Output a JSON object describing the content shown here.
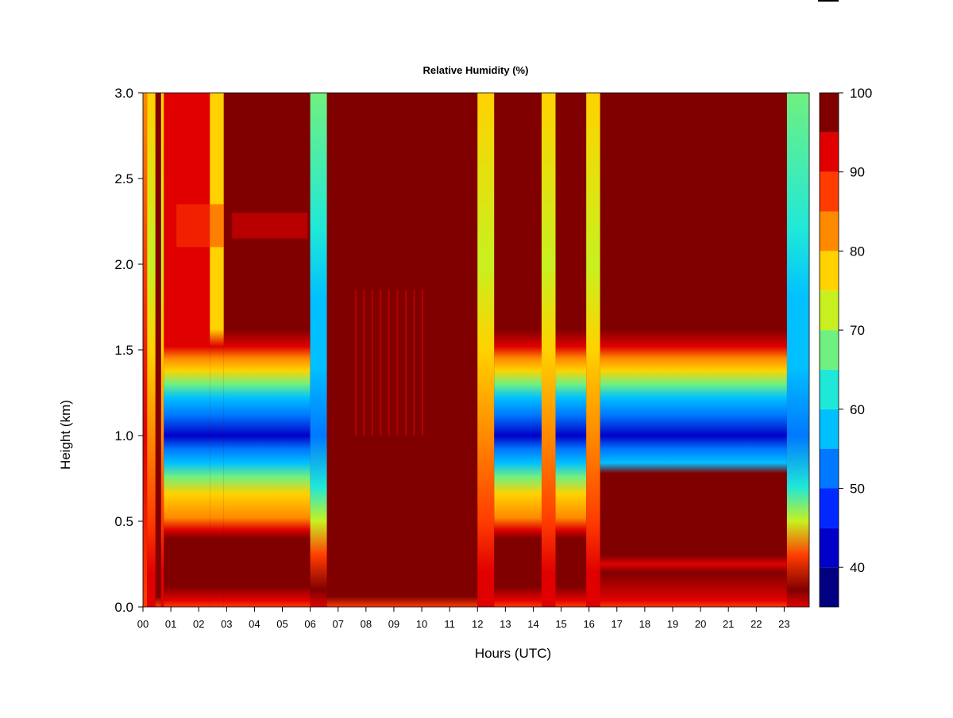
{
  "chart_data": {
    "type": "heatmap",
    "title": "Relative Humidity (%)",
    "xlabel": "Hours (UTC)",
    "ylabel": "Height (km)",
    "x_ticks": [
      "00",
      "01",
      "02",
      "03",
      "04",
      "05",
      "06",
      "07",
      "08",
      "09",
      "10",
      "11",
      "12",
      "13",
      "14",
      "15",
      "16",
      "17",
      "18",
      "19",
      "20",
      "21",
      "22",
      "23"
    ],
    "y_ticks": [
      "0.0",
      "0.5",
      "1.0",
      "1.5",
      "2.0",
      "2.5",
      "3.0"
    ],
    "xlim": [
      0,
      23.9
    ],
    "ylim": [
      0,
      3.0
    ],
    "z_levels": [
      35,
      40,
      45,
      50,
      55,
      60,
      65,
      70,
      75,
      80,
      85,
      90,
      95,
      100
    ],
    "colorbar_labels": [
      "40",
      "50",
      "60",
      "70",
      "80",
      "90",
      "100"
    ],
    "colors": [
      "#000080",
      "#0000c8",
      "#0028ff",
      "#0078ff",
      "#00c0ff",
      "#20e8d8",
      "#70f080",
      "#c8f020",
      "#ffd200",
      "#ff8a00",
      "#ff3c00",
      "#e00000",
      "#800000"
    ],
    "grid": false,
    "legend": "colorbar-right",
    "features": {
      "clear_periods_hours": [
        [
          6.6,
          12.0
        ]
      ],
      "moist_layer_center_km": 1.0,
      "min_rh_percent": 40,
      "max_rh_percent": 100
    },
    "columns": [
      {
        "start": 0.0,
        "end": 0.15,
        "kind": "edge"
      },
      {
        "start": 0.15,
        "end": 0.45,
        "kind": "plume"
      },
      {
        "start": 0.45,
        "end": 0.65,
        "kind": "cloud"
      },
      {
        "start": 0.65,
        "end": 0.75,
        "kind": "plume"
      },
      {
        "start": 0.75,
        "end": 2.4,
        "kind": "layered",
        "mid": "#e00000"
      },
      {
        "start": 2.4,
        "end": 2.9,
        "kind": "layered",
        "mid": "#ffd200"
      },
      {
        "start": 2.9,
        "end": 6.0,
        "kind": "layered",
        "mid": "#800000"
      },
      {
        "start": 6.0,
        "end": 6.6,
        "kind": "layered_edge"
      },
      {
        "start": 6.6,
        "end": 12.0,
        "kind": "cloud"
      },
      {
        "start": 12.0,
        "end": 12.6,
        "kind": "plume"
      },
      {
        "start": 12.6,
        "end": 14.3,
        "kind": "layered",
        "mid": "#800000"
      },
      {
        "start": 14.3,
        "end": 14.8,
        "kind": "plume"
      },
      {
        "start": 14.8,
        "end": 15.9,
        "kind": "layered",
        "mid": "#800000"
      },
      {
        "start": 15.9,
        "end": 16.4,
        "kind": "plume"
      },
      {
        "start": 16.4,
        "end": 23.1,
        "kind": "layered_low",
        "mid": "#800000"
      },
      {
        "start": 23.1,
        "end": 23.9,
        "kind": "layered_edge"
      }
    ]
  }
}
